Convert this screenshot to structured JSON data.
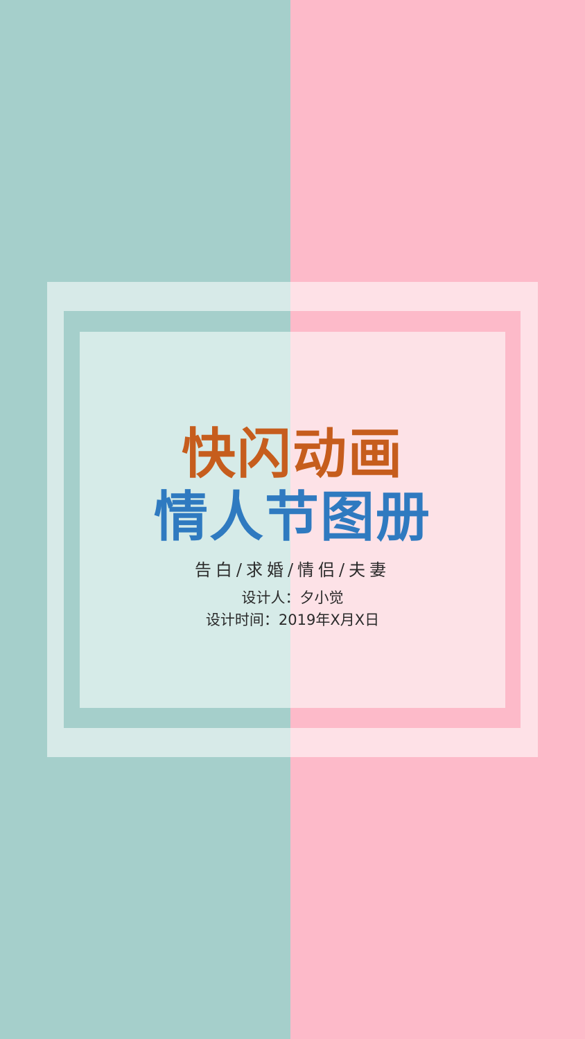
{
  "colors": {
    "teal": "#a5cfcb",
    "pink": "#fdbac9",
    "inner_teal": "#d6ebe8",
    "inner_pink": "#fde2e7",
    "title_orange": "#c65d1d",
    "title_blue": "#2f7ac0",
    "text_dark": "#2a2a2a"
  },
  "title_line_1": "快闪动画",
  "title_line_2": "情人节图册",
  "subtitle": "告白/求婚/情侣/夫妻",
  "designer": "设计人：夕小觉",
  "design_time": "设计时间：2019年X月X日"
}
